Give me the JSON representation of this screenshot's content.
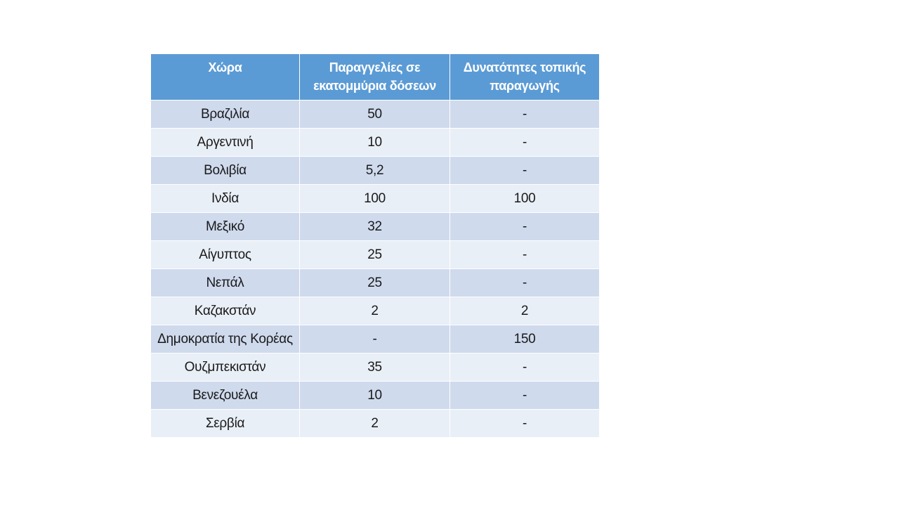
{
  "table": {
    "header": [
      "Χώρα",
      "Παραγγελίες σε εκατομμύρια δόσεων",
      "Δυνατότητες τοπικής παραγωγής"
    ],
    "rows": [
      [
        "Βραζιλία",
        "50",
        "-"
      ],
      [
        "Αργεντινή",
        "10",
        "-"
      ],
      [
        "Βολιβία",
        "5,2",
        "-"
      ],
      [
        "Ινδία",
        "100",
        "100"
      ],
      [
        "Μεξικό",
        "32",
        "-"
      ],
      [
        "Αίγυπτος",
        "25",
        "-"
      ],
      [
        "Νεπάλ",
        "25",
        "-"
      ],
      [
        "Καζακστάν",
        "2",
        "2"
      ],
      [
        "Δημοκρατία της Κορέας",
        "-",
        "150"
      ],
      [
        "Ουζμπεκιστάν",
        "35",
        "-"
      ],
      [
        "Βενεζουέλα",
        "10",
        "-"
      ],
      [
        "Σερβία",
        "2",
        "-"
      ]
    ]
  }
}
